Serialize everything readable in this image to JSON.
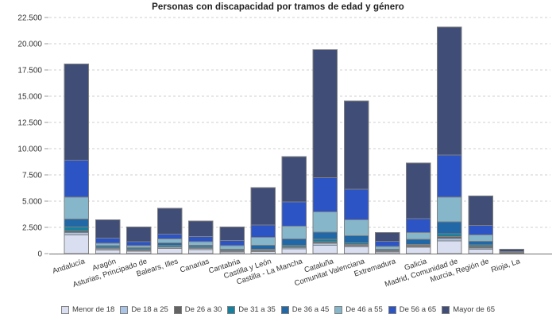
{
  "chart_data": {
    "type": "bar",
    "stacked": true,
    "title": "Personas con discapacidad por tramos de edad y género",
    "xlabel": "",
    "ylabel": "",
    "ylim": [
      0,
      22500
    ],
    "ytick_step": 2500,
    "ytick_labels": [
      "0",
      "2.500",
      "5.000",
      "7.500",
      "10.000",
      "12.500",
      "15.000",
      "17.500",
      "20.000",
      "22.500"
    ],
    "grid": "horizontal-dashed",
    "legend_position": "bottom",
    "categories": [
      "Andalucía",
      "Aragón",
      "Asturias, Principado de",
      "Balears, Illes",
      "Canarias",
      "Cantabria",
      "Castilla y León",
      "Castilla - La Mancha",
      "Cataluña",
      "Comunitat Valenciana",
      "Extremadura",
      "Galicia",
      "Madrid, Comunidad de",
      "Murcia, Región de",
      "Rioja, La"
    ],
    "series": [
      {
        "name": "Menor de 18",
        "color": "#d9def0",
        "values": [
          1790,
          350,
          220,
          480,
          380,
          150,
          200,
          450,
          800,
          630,
          150,
          600,
          1210,
          420,
          25
        ]
      },
      {
        "name": "De 18 a 25",
        "color": "#a9c4e6",
        "values": [
          230,
          100,
          80,
          120,
          100,
          50,
          60,
          100,
          180,
          120,
          40,
          80,
          230,
          100,
          10
        ]
      },
      {
        "name": "De 26 a 30",
        "color": "#636363",
        "values": [
          150,
          50,
          50,
          60,
          50,
          40,
          70,
          100,
          150,
          120,
          50,
          120,
          200,
          160,
          15
        ]
      },
      {
        "name": "De 31 a 35",
        "color": "#17809e",
        "values": [
          380,
          100,
          90,
          120,
          100,
          60,
          100,
          150,
          250,
          150,
          60,
          80,
          250,
          150,
          15
        ]
      },
      {
        "name": "De 36 a 45",
        "color": "#2267a6",
        "values": [
          760,
          150,
          140,
          250,
          180,
          130,
          380,
          600,
          680,
          700,
          100,
          500,
          1130,
          350,
          30
        ]
      },
      {
        "name": "De 46 a 55",
        "color": "#86b6c9",
        "values": [
          2080,
          250,
          180,
          380,
          330,
          320,
          760,
          1230,
          1900,
          1500,
          280,
          630,
          2350,
          600,
          45
        ]
      },
      {
        "name": "De 56 a 65",
        "color": "#2d54c5",
        "values": [
          3500,
          480,
          380,
          455,
          500,
          500,
          1140,
          2300,
          3280,
          2900,
          500,
          1340,
          4040,
          900,
          60
        ]
      },
      {
        "name": "Mayor de 65",
        "color": "#3f4d77",
        "values": [
          9170,
          1750,
          1400,
          2450,
          1480,
          1270,
          3590,
          4310,
          12200,
          8420,
          835,
          5280,
          12200,
          2800,
          230
        ]
      }
    ],
    "colors": {
      "background": "#ffffff",
      "grid": "#cfcfcf",
      "axis": "#707070",
      "tick": "#999999",
      "segment_border": "#808080",
      "axis_text": "#333333",
      "title_text": "#1f1f1f",
      "legend_text": "#3c3c3c"
    }
  }
}
